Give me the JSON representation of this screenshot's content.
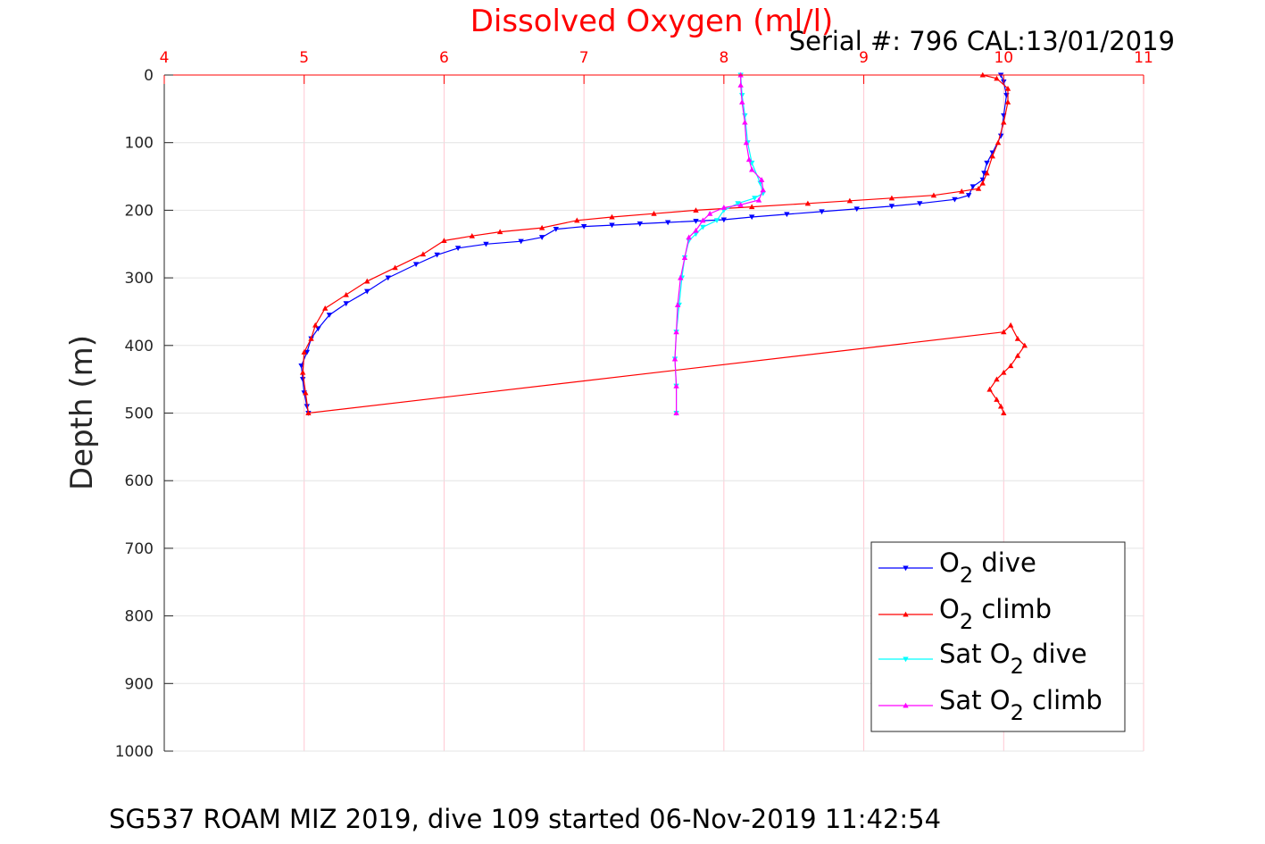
{
  "chart_data": {
    "type": "line",
    "title": "Dissolved Oxygen (ml/l)",
    "subtitle": "Serial #: 796  CAL:13/01/2019",
    "footer": "SG537 ROAM MIZ 2019, dive 109 started 06-Nov-2019 11:42:54",
    "xlabel": "",
    "ylabel": "Depth (m)",
    "xlim": [
      4,
      11
    ],
    "ylim": [
      0,
      1000
    ],
    "y_reversed": true,
    "x_axis_position": "top",
    "x_ticks": [
      "4",
      "5",
      "6",
      "7",
      "8",
      "9",
      "10",
      "11"
    ],
    "y_ticks": [
      "0",
      "100",
      "200",
      "300",
      "400",
      "500",
      "600",
      "700",
      "800",
      "900",
      "1000"
    ],
    "grid": true,
    "legend_position": "bottom-right",
    "colors": {
      "axis_red": "#ff0000",
      "grid": "#e4e4e4",
      "x_grid": "#ffc8d2"
    },
    "legend": [
      {
        "prefix": "O",
        "sub": "2",
        "suffix": " dive"
      },
      {
        "prefix": "O",
        "sub": "2",
        "suffix": " climb"
      },
      {
        "prefix": "Sat O",
        "sub": "2",
        "suffix": " dive"
      },
      {
        "prefix": "Sat O",
        "sub": "2",
        "suffix": " climb"
      }
    ],
    "series": [
      {
        "name": "O2 dive",
        "color": "#0000ff",
        "marker": "triangle-down",
        "points": [
          [
            9.98,
            0
          ],
          [
            10.0,
            10
          ],
          [
            10.02,
            30
          ],
          [
            10.0,
            60
          ],
          [
            9.98,
            90
          ],
          [
            9.92,
            115
          ],
          [
            9.88,
            130
          ],
          [
            9.86,
            145
          ],
          [
            9.85,
            155
          ],
          [
            9.78,
            165
          ],
          [
            9.75,
            178
          ],
          [
            9.65,
            184
          ],
          [
            9.4,
            190
          ],
          [
            9.2,
            194
          ],
          [
            8.95,
            198
          ],
          [
            8.7,
            202
          ],
          [
            8.45,
            206
          ],
          [
            8.2,
            210
          ],
          [
            8.0,
            214
          ],
          [
            7.8,
            216
          ],
          [
            7.6,
            218
          ],
          [
            7.4,
            220
          ],
          [
            7.2,
            222
          ],
          [
            7.0,
            224
          ],
          [
            6.8,
            228
          ],
          [
            6.7,
            240
          ],
          [
            6.55,
            246
          ],
          [
            6.3,
            250
          ],
          [
            6.1,
            256
          ],
          [
            5.95,
            266
          ],
          [
            5.8,
            280
          ],
          [
            5.6,
            300
          ],
          [
            5.45,
            320
          ],
          [
            5.3,
            338
          ],
          [
            5.18,
            355
          ],
          [
            5.1,
            375
          ],
          [
            5.05,
            390
          ],
          [
            5.02,
            410
          ],
          [
            4.98,
            430
          ],
          [
            4.99,
            450
          ],
          [
            5.0,
            470
          ],
          [
            5.02,
            490
          ],
          [
            5.03,
            500
          ]
        ]
      },
      {
        "name": "O2 climb",
        "color": "#ff0000",
        "marker": "triangle-up",
        "points": [
          [
            10.0,
            500
          ],
          [
            9.98,
            490
          ],
          [
            9.95,
            480
          ],
          [
            9.9,
            465
          ],
          [
            9.95,
            450
          ],
          [
            10.0,
            440
          ],
          [
            10.05,
            430
          ],
          [
            10.1,
            415
          ],
          [
            10.15,
            400
          ],
          [
            10.1,
            390
          ],
          [
            10.05,
            370
          ],
          [
            10.0,
            380
          ],
          [
            5.03,
            500
          ],
          [
            5.01,
            470
          ],
          [
            4.99,
            440
          ],
          [
            5.0,
            410
          ],
          [
            5.05,
            390
          ],
          [
            5.08,
            370
          ],
          [
            5.15,
            345
          ],
          [
            5.3,
            325
          ],
          [
            5.45,
            305
          ],
          [
            5.65,
            285
          ],
          [
            5.85,
            265
          ],
          [
            6.0,
            245
          ],
          [
            6.2,
            238
          ],
          [
            6.4,
            232
          ],
          [
            6.7,
            226
          ],
          [
            6.95,
            215
          ],
          [
            7.2,
            210
          ],
          [
            7.5,
            205
          ],
          [
            7.8,
            200
          ],
          [
            8.2,
            195
          ],
          [
            8.6,
            190
          ],
          [
            8.9,
            186
          ],
          [
            9.2,
            182
          ],
          [
            9.5,
            178
          ],
          [
            9.7,
            172
          ],
          [
            9.82,
            168
          ],
          [
            9.85,
            160
          ],
          [
            9.88,
            145
          ],
          [
            9.92,
            120
          ],
          [
            9.96,
            100
          ],
          [
            10.0,
            70
          ],
          [
            10.03,
            40
          ],
          [
            10.03,
            20
          ],
          [
            9.95,
            5
          ],
          [
            9.85,
            0
          ]
        ]
      },
      {
        "name": "Sat O2 dive",
        "color": "#00ffff",
        "marker": "triangle-down",
        "points": [
          [
            8.12,
            0
          ],
          [
            8.13,
            30
          ],
          [
            8.15,
            60
          ],
          [
            8.17,
            100
          ],
          [
            8.2,
            130
          ],
          [
            8.26,
            160
          ],
          [
            8.28,
            175
          ],
          [
            8.22,
            182
          ],
          [
            8.1,
            190
          ],
          [
            8.0,
            200
          ],
          [
            7.95,
            215
          ],
          [
            7.85,
            225
          ],
          [
            7.8,
            235
          ],
          [
            7.75,
            245
          ],
          [
            7.72,
            270
          ],
          [
            7.7,
            300
          ],
          [
            7.68,
            340
          ],
          [
            7.66,
            380
          ],
          [
            7.65,
            420
          ],
          [
            7.66,
            460
          ],
          [
            7.66,
            500
          ]
        ]
      },
      {
        "name": "Sat O2 climb",
        "color": "#ff00ff",
        "marker": "triangle-up",
        "points": [
          [
            7.66,
            500
          ],
          [
            7.66,
            460
          ],
          [
            7.65,
            420
          ],
          [
            7.66,
            380
          ],
          [
            7.67,
            340
          ],
          [
            7.69,
            300
          ],
          [
            7.72,
            270
          ],
          [
            7.75,
            240
          ],
          [
            7.8,
            230
          ],
          [
            7.85,
            215
          ],
          [
            7.9,
            205
          ],
          [
            8.0,
            196
          ],
          [
            8.12,
            192
          ],
          [
            8.25,
            185
          ],
          [
            8.28,
            170
          ],
          [
            8.27,
            155
          ],
          [
            8.2,
            140
          ],
          [
            8.18,
            125
          ],
          [
            8.16,
            100
          ],
          [
            8.15,
            70
          ],
          [
            8.13,
            40
          ],
          [
            8.12,
            15
          ],
          [
            8.12,
            0
          ]
        ]
      }
    ]
  }
}
